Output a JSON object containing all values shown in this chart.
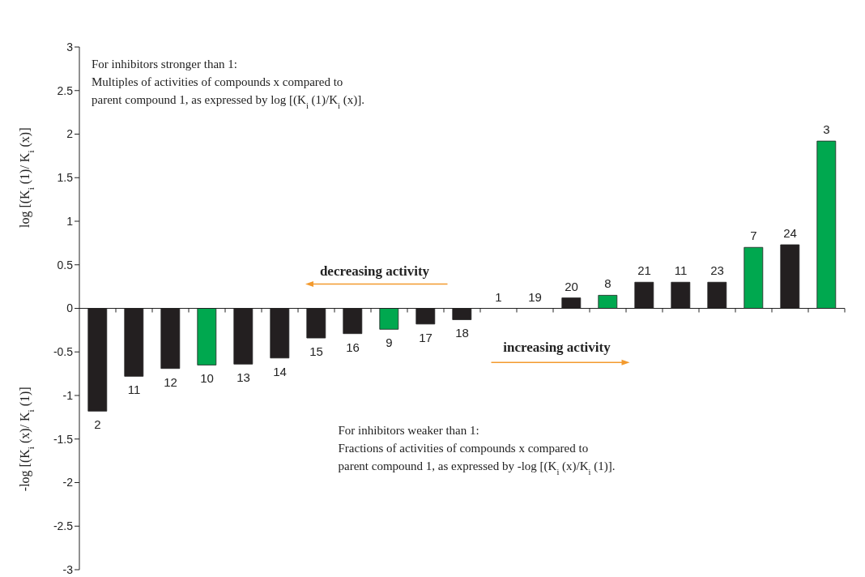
{
  "chart_data": {
    "type": "bar",
    "ylabel": "log [(K$_{i}$ (1)/ K$_{i}$ (x)]",
    "categories": [
      "2",
      "11",
      "12",
      "10",
      "13",
      "14",
      "15",
      "16",
      "9",
      "17",
      "18",
      "1",
      "19",
      "20",
      "8",
      "21",
      "11",
      "23",
      "7",
      "24",
      "3"
    ],
    "values": [
      -1.18,
      -0.78,
      -0.69,
      -0.65,
      -0.64,
      -0.57,
      -0.34,
      -0.29,
      -0.24,
      -0.18,
      -0.13,
      0,
      0,
      0.12,
      0.15,
      0.3,
      0.3,
      0.3,
      0.7,
      0.73,
      1.92
    ],
    "colors": [
      "#231f20",
      "#231f20",
      "#231f20",
      "#00a84f",
      "#231f20",
      "#231f20",
      "#231f20",
      "#231f20",
      "#00a84f",
      "#231f20",
      "#231f20",
      "#231f20",
      "#231f20",
      "#231f20",
      "#00a84f",
      "#231f20",
      "#231f20",
      "#231f20",
      "#00a84f",
      "#231f20",
      "#00a84f"
    ],
    "ylim": [
      -3,
      3
    ],
    "yticks": [
      -3,
      -2.5,
      -2,
      -1.5,
      -1,
      -0.5,
      0,
      0.5,
      1,
      1.5,
      2,
      2.5,
      3
    ],
    "legend": false,
    "annotations": [
      "For inhibitors stronger than 1:\nMultiples of activities of compounds x compared to\nparent compound 1, as expressed by log [(K$_{i}$ (1)/K$_{i}$ (x)].",
      "For inhibitors weaker than 1:\nFractions of activities of compounds x compared to\nparent compound 1, as expressed by -log [(K$_{i}$ (x)/K$_{i}$ (1)].",
      "decreasing activity",
      "increasing activity",
      "-log [(K$_{i}$ (x)/ K$_{i}$ (1)]"
    ]
  }
}
